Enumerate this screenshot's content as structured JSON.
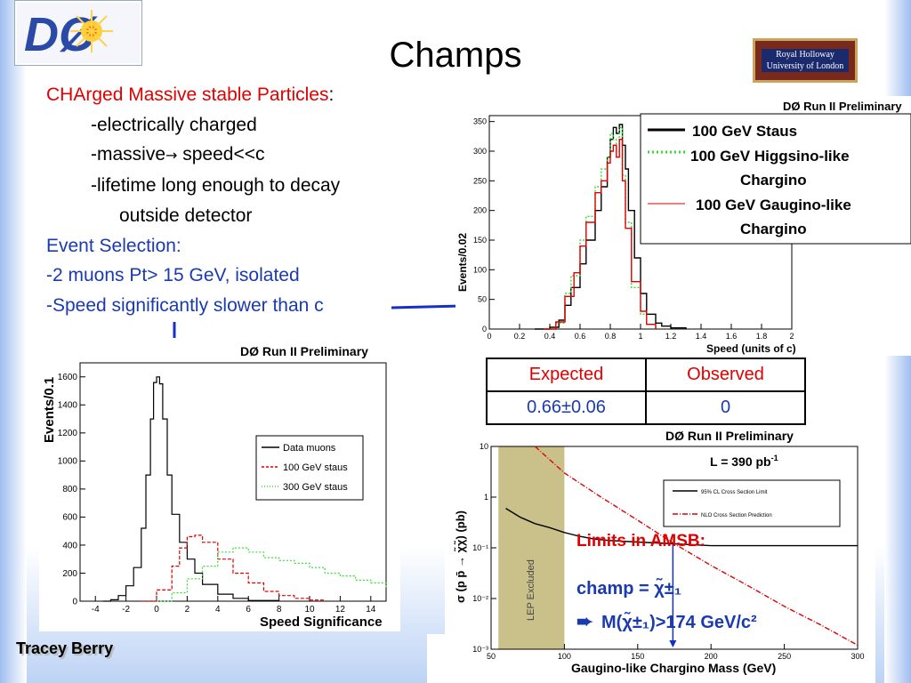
{
  "slide": {
    "title": "Champs",
    "author": "Tracey Berry",
    "logo_left_text": "DØ",
    "logo_right_line1": "Royal Holloway",
    "logo_right_line2": "University of London"
  },
  "text": {
    "line1_red": "CHArged Massive stable Particles",
    "line1_colon": ":",
    "b1": "-electrically charged",
    "b2_pre": "-massive",
    "b2_arrow": "→",
    "b2_post": " speed<<c",
    "b3": "-lifetime long enough to decay",
    "b3b": "outside detector",
    "sel_head": "Event Selection:",
    "sel1": "-2 muons Pt> 15 GeV, isolated",
    "sel2": "-Speed significantly slower than c"
  },
  "table": {
    "headers": [
      "Expected",
      "Observed"
    ],
    "values": [
      "0.66±0.06",
      "0"
    ]
  },
  "colors": {
    "red_text": "#e00000",
    "blue_text": "#1a3ab0",
    "arrow": "#1530c8",
    "lep_band": "#c9c08a"
  },
  "chart_data": [
    {
      "type": "line",
      "title": "DØ Run II Preliminary",
      "xlabel": "Speed (units of c)",
      "ylabel": "Events/0.02",
      "xlim": [
        0,
        2
      ],
      "ylim": [
        0,
        360
      ],
      "xticks": [
        0,
        0.2,
        0.4,
        0.6,
        0.8,
        1,
        1.2,
        1.4,
        1.6,
        1.8,
        2
      ],
      "xtick_labels": [
        "0",
        "0.2",
        "0.4",
        "0.6",
        "0.8",
        "1",
        "1.2",
        "1.4",
        "1.6",
        "1.8",
        "2"
      ],
      "yticks": [
        0,
        50,
        100,
        150,
        200,
        250,
        300,
        350
      ],
      "legend": [
        "100 GeV Staus",
        "100 GeV Higgsino-like",
        "Chargino",
        "100 GeV Gaugino-like",
        "Chargino"
      ],
      "legend_position": "top-right",
      "series": [
        {
          "name": "100 GeV Staus",
          "color": "#000000",
          "style": "solid",
          "x": [
            0.3,
            0.4,
            0.46,
            0.5,
            0.54,
            0.6,
            0.64,
            0.7,
            0.74,
            0.78,
            0.8,
            0.82,
            0.84,
            0.86,
            0.88,
            0.9,
            0.92,
            0.96,
            1.0,
            1.04,
            1.1,
            1.14,
            1.2,
            1.3
          ],
          "y": [
            0,
            3,
            15,
            40,
            70,
            110,
            150,
            200,
            240,
            290,
            320,
            340,
            330,
            345,
            310,
            270,
            200,
            120,
            60,
            25,
            10,
            5,
            2,
            0
          ]
        },
        {
          "name": "100 GeV Higgsino-like Chargino",
          "color": "#33dd33",
          "style": "dotted",
          "x": [
            0.36,
            0.44,
            0.5,
            0.54,
            0.6,
            0.64,
            0.7,
            0.74,
            0.78,
            0.8,
            0.82,
            0.84,
            0.86,
            0.88,
            0.9,
            0.94,
            1.0,
            1.04,
            1.1
          ],
          "y": [
            0,
            10,
            60,
            90,
            150,
            190,
            240,
            270,
            290,
            330,
            320,
            300,
            340,
            260,
            180,
            70,
            25,
            8,
            0
          ]
        },
        {
          "name": "100 GeV Gaugino-like Chargino",
          "color": "#e00000",
          "style": "solid",
          "x": [
            0.36,
            0.44,
            0.5,
            0.56,
            0.6,
            0.64,
            0.7,
            0.74,
            0.78,
            0.8,
            0.82,
            0.84,
            0.86,
            0.88,
            0.9,
            0.94,
            1.0,
            1.04,
            1.1
          ],
          "y": [
            0,
            12,
            55,
            95,
            140,
            180,
            230,
            250,
            280,
            300,
            310,
            290,
            320,
            250,
            170,
            80,
            30,
            8,
            0
          ]
        }
      ]
    },
    {
      "type": "line",
      "title": "DØ Run II Preliminary",
      "xlabel": "Speed Significance",
      "ylabel": "Events/0.1",
      "xlim": [
        -5,
        15
      ],
      "ylim": [
        0,
        1700
      ],
      "xticks": [
        -4,
        -2,
        0,
        2,
        4,
        6,
        8,
        10,
        12,
        14
      ],
      "yticks": [
        0,
        200,
        400,
        600,
        800,
        1000,
        1200,
        1400,
        1600
      ],
      "legend": [
        "Data muons",
        "100 GeV staus",
        "300 GeV staus"
      ],
      "legend_position": "right",
      "series": [
        {
          "name": "Data muons",
          "color": "#000000",
          "style": "solid",
          "x": [
            -3.5,
            -3,
            -2.5,
            -2,
            -1.5,
            -1,
            -0.7,
            -0.4,
            -0.2,
            0,
            0.2,
            0.4,
            0.7,
            1,
            1.5,
            2,
            2.5,
            3,
            4,
            5,
            6,
            8
          ],
          "y": [
            0,
            10,
            40,
            110,
            240,
            520,
            900,
            1300,
            1560,
            1600,
            1550,
            1300,
            900,
            620,
            420,
            300,
            200,
            120,
            50,
            20,
            5,
            0
          ]
        },
        {
          "name": "100 GeV staus",
          "color": "#e00000",
          "style": "dashed",
          "x": [
            -1,
            0,
            1,
            1.5,
            2,
            2.5,
            3,
            4,
            5,
            6,
            7,
            8,
            9,
            10,
            11
          ],
          "y": [
            0,
            80,
            250,
            380,
            460,
            470,
            420,
            300,
            200,
            130,
            70,
            40,
            20,
            8,
            0
          ]
        },
        {
          "name": "300 GeV staus",
          "color": "#33dd33",
          "style": "dotted",
          "x": [
            0,
            1,
            2,
            3,
            4,
            5,
            6,
            7,
            8,
            9,
            10,
            11,
            12,
            13,
            14,
            15
          ],
          "y": [
            0,
            60,
            160,
            250,
            350,
            380,
            350,
            310,
            290,
            270,
            240,
            200,
            180,
            150,
            130,
            100
          ]
        }
      ]
    },
    {
      "type": "line",
      "title": "DØ Run II Preliminary",
      "xlabel": "Gaugino-like Chargino Mass (GeV)",
      "ylabel": "σ (p p̄ → χ̃χ̃) (pb)",
      "xlog": false,
      "ylog": true,
      "xlim": [
        50,
        300
      ],
      "ylim": [
        0.001,
        10
      ],
      "xticks": [
        50,
        100,
        150,
        200,
        250,
        300
      ],
      "yticks": [
        0.001,
        0.01,
        0.1,
        1,
        10
      ],
      "ytick_labels": [
        "10⁻³",
        "10⁻²",
        "10⁻¹",
        "1",
        "10"
      ],
      "luminosity_label": "L = 390 pb",
      "luminosity_sup": "-1",
      "band_label": "LEP Excluded",
      "band_range": [
        55,
        100
      ],
      "legend": [
        "95% CL Cross Section Limit",
        "NLO Cross Section Prediction"
      ],
      "legend_position": "top-right",
      "series": [
        {
          "name": "95% CL Cross Section Limit",
          "color": "#000000",
          "style": "solid",
          "x": [
            60,
            70,
            80,
            90,
            100,
            110,
            120,
            130,
            150,
            175,
            200,
            250,
            300
          ],
          "y": [
            0.6,
            0.4,
            0.3,
            0.25,
            0.2,
            0.17,
            0.15,
            0.14,
            0.13,
            0.12,
            0.11,
            0.11,
            0.11
          ]
        },
        {
          "name": "NLO Cross Section Prediction",
          "color": "#e00000",
          "style": "dashdot",
          "x": [
            80,
            100,
            125,
            150,
            175,
            200,
            225,
            250,
            275,
            300
          ],
          "y": [
            10,
            3,
            1,
            0.35,
            0.12,
            0.045,
            0.018,
            0.007,
            0.003,
            0.0012
          ]
        }
      ],
      "annotation_heading": "Limits in AMSB:",
      "annotation_line2": "champ = χ̃±₁",
      "annotation_arrow": "➨",
      "annotation_line3": "M(χ̃±₁)>174 GeV/c²",
      "limit_mass": 174
    }
  ]
}
